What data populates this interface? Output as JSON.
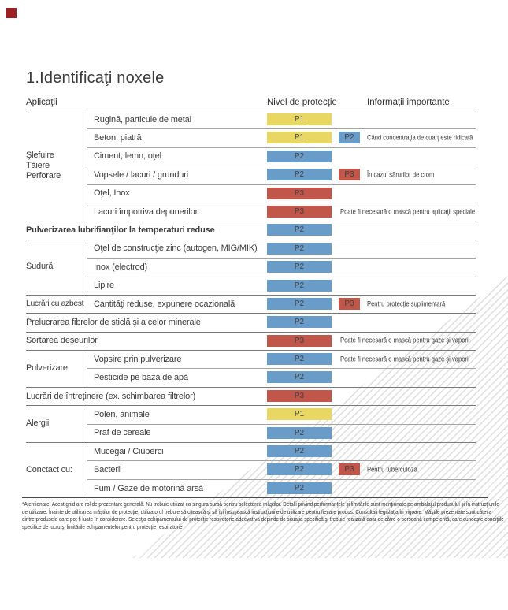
{
  "page_title": "1.Identificaţi noxele",
  "corner_mark_color": "#9c2024",
  "columns": {
    "applications": "Aplicaţii",
    "protection": "Nivel de protecţie",
    "info": "Informaţii importante"
  },
  "levels": {
    "P1": "#e8d763",
    "P2": "#6a9cc9",
    "P3": "#c1564a"
  },
  "groups": [
    {
      "label": "Şlefuire\nTăiere\nPerforare",
      "start": 0,
      "span": 6,
      "tight": false
    },
    {
      "label": "Sudură",
      "start": 7,
      "span": 3,
      "tight": false
    },
    {
      "label": "Lucrări cu azbest",
      "start": 10,
      "span": 1,
      "tight": true
    },
    {
      "label": "Pulverizare",
      "start": 13,
      "span": 2,
      "tight": false
    },
    {
      "label": "Alergii",
      "start": 16,
      "span": 2,
      "tight": false
    },
    {
      "label": "Conctact cu:",
      "start": 18,
      "span": 3,
      "tight": false
    }
  ],
  "rows": [
    {
      "label": "Rugină, particule de metal",
      "level": "P1",
      "sep": "none"
    },
    {
      "label": "Beton, piatră",
      "level": "P1",
      "chip": "P2",
      "info": "Când concentraţia de cuarţ este ridicată",
      "sep": "sub"
    },
    {
      "label": "Ciment, lemn, oţel",
      "level": "P2",
      "sep": "sub"
    },
    {
      "label": "Vopsele / lacuri / grunduri",
      "level": "P2",
      "chip": "P3",
      "info": "În cazul sărurilor de crom",
      "sep": "sub"
    },
    {
      "label": "Oţel, Inox",
      "level": "P3",
      "sep": "sub"
    },
    {
      "label": "Lacuri împotriva depunerilor",
      "level": "P3",
      "info": "Poate fi necesară o mască pentru aplicaţii speciale",
      "sep": "sub"
    },
    {
      "label": "Pulverizarea lubrifianţilor la temperaturi reduse",
      "level": "P2",
      "full": true,
      "bold": true,
      "sep": "full"
    },
    {
      "label": "Oţel de construcţie zinc (autogen, MIG/MIK)",
      "level": "P2",
      "sep": "full"
    },
    {
      "label": "Inox (electrod)",
      "level": "P2",
      "sep": "sub"
    },
    {
      "label": "Lipire",
      "level": "P2",
      "sep": "sub"
    },
    {
      "label": "Cantităţi reduse, expunere ocazională",
      "level": "P2",
      "chip": "P3",
      "info": "Pentru protecţie suplimentară",
      "sep": "full"
    },
    {
      "label": "Prelucrarea fibrelor de sticlă şi a celor minerale",
      "level": "P2",
      "full": true,
      "sep": "full"
    },
    {
      "label": "Sortarea deşeurilor",
      "level": "P3",
      "full": true,
      "info": "Poate fi necesară o mască pentru gaze şi vapori",
      "sep": "full"
    },
    {
      "label": "Vopsire prin pulverizare",
      "level": "P2",
      "info": "Poate fi necesară o mască pentru gaze şi vapori",
      "sep": "full"
    },
    {
      "label": "Pesticide pe bază de apă",
      "level": "P2",
      "sep": "sub"
    },
    {
      "label": "Lucrări de întreţinere (ex. schimbarea filtrelor)",
      "level": "P3",
      "full": true,
      "sep": "full"
    },
    {
      "label": "Polen, animale",
      "level": "P1",
      "sep": "full"
    },
    {
      "label": "Praf de cereale",
      "level": "P2",
      "sep": "sub"
    },
    {
      "label": "Mucegai / Ciuperci",
      "level": "P2",
      "sep": "full"
    },
    {
      "label": "Bacterii",
      "level": "P2",
      "chip": "P3",
      "info": "Pentru tuberculoză",
      "sep": "sub"
    },
    {
      "label": "Fum / Gaze de motorină arsă",
      "level": "P2",
      "sep": "sub"
    }
  ],
  "footnote_lines": [
    "*Atenţionare: Acest ghid are rol de prezentare generală. Nu trebuie utilizat ca singura sursă pentru selectarea măştilor. Detalii privind performanţele şi limitările sunt menţionate pe ambalajul produsului şi în instrucţiunile",
    "de utilizare. Înainte de utilizarea măştilor de protecţie, utilizatorul trebuie să citească şi să îşi însuşească instrucţiunile de utilizare pentru fiecare produs. Consultaţi legislaţia în vigoare. Măştile prezentate sunt câteva",
    "dintre produsele care pot fi luate în considerare. Selecţia echipamentului de protecţie respiratorie adecvat va depinde de situaţia specifică şi trebuie realizată doar de către o persoană competentă, care cunoaşte condiţiile",
    "specifice de lucru şi limitările echipamentelor pentru protecţie respiratorie"
  ]
}
